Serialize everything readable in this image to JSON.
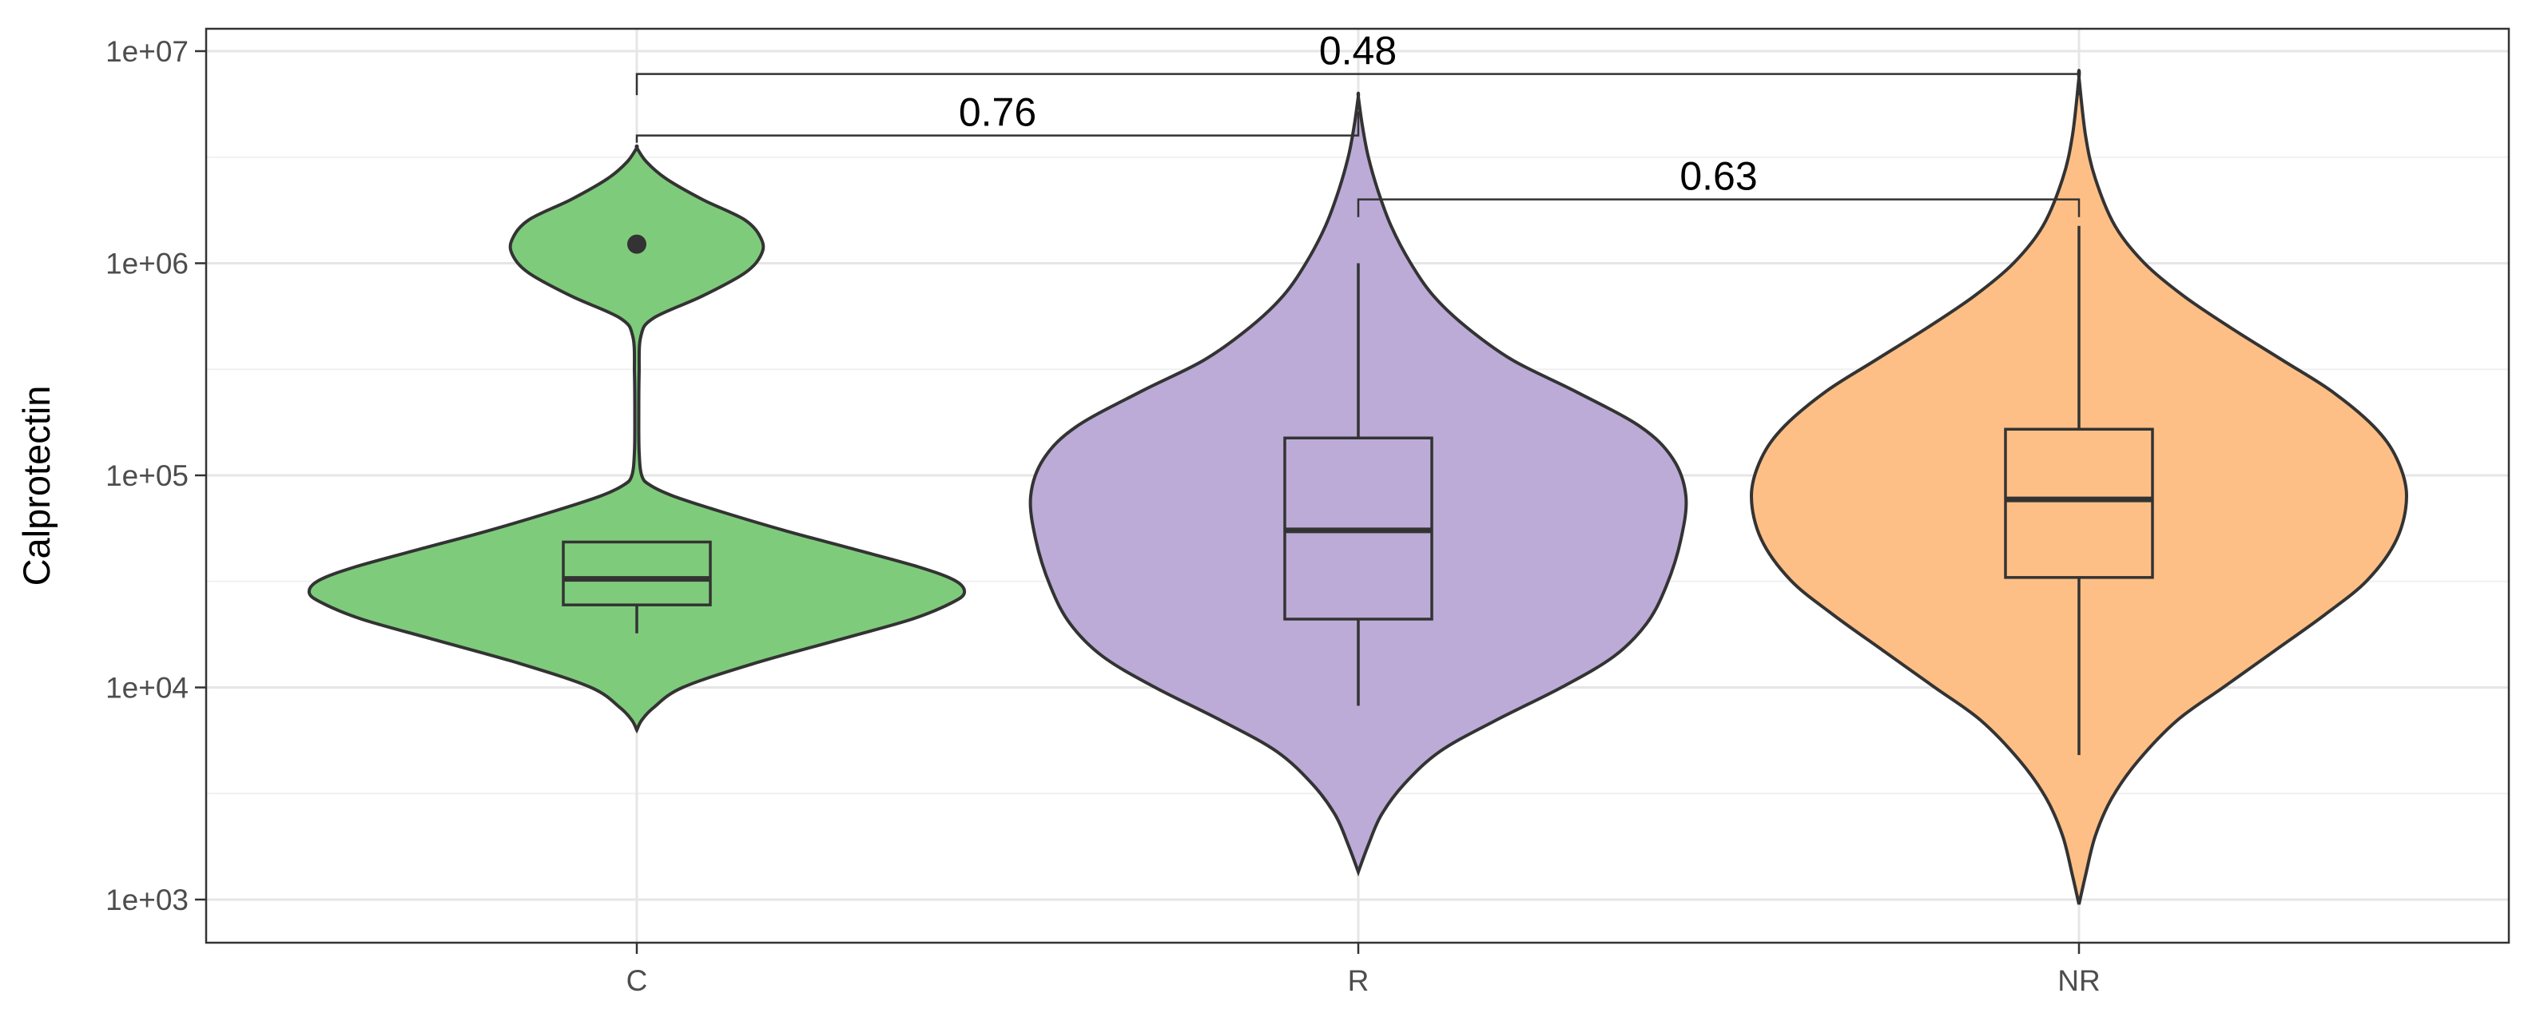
{
  "chart_data": {
    "type": "violin",
    "ylabel": "Calprotectin",
    "xlabel": "",
    "yscale": "log10",
    "ylim": [
      700,
      13000000
    ],
    "y_ticks": [
      1000,
      10000,
      100000,
      1000000,
      10000000
    ],
    "y_tick_labels": [
      "1e+03",
      "1e+04",
      "1e+05",
      "1e+06",
      "1e+07"
    ],
    "categories": [
      "C",
      "R",
      "NR"
    ],
    "grid": true,
    "legend": "none",
    "groups": [
      {
        "category": "C",
        "color": "#7fcb7c",
        "box": {
          "q1": 24500,
          "median": 32500,
          "q3": 48500,
          "whisker_low": 18000,
          "whisker_high": 48500
        },
        "outliers": [
          1230000
        ],
        "violin_range": [
          6300,
          3500000
        ],
        "density": [
          [
            6300,
            0.0
          ],
          [
            7000,
            0.015
          ],
          [
            8000,
            0.05
          ],
          [
            10000,
            0.14
          ],
          [
            13000,
            0.36
          ],
          [
            17000,
            0.63
          ],
          [
            21000,
            0.84
          ],
          [
            25000,
            0.96
          ],
          [
            28000,
            1.0
          ],
          [
            32000,
            0.97
          ],
          [
            37000,
            0.86
          ],
          [
            45000,
            0.66
          ],
          [
            55000,
            0.45
          ],
          [
            68000,
            0.25
          ],
          [
            80000,
            0.11
          ],
          [
            90000,
            0.04
          ],
          [
            100000,
            0.015
          ],
          [
            130000,
            0.007
          ],
          [
            200000,
            0.006
          ],
          [
            300000,
            0.007
          ],
          [
            450000,
            0.012
          ],
          [
            550000,
            0.05
          ],
          [
            700000,
            0.2
          ],
          [
            900000,
            0.33
          ],
          [
            1100000,
            0.38
          ],
          [
            1300000,
            0.38
          ],
          [
            1600000,
            0.33
          ],
          [
            2000000,
            0.2
          ],
          [
            2500000,
            0.09
          ],
          [
            3000000,
            0.03
          ],
          [
            3500000,
            0.0
          ]
        ]
      },
      {
        "category": "R",
        "color": "#bbabd6",
        "box": {
          "q1": 21000,
          "median": 55000,
          "q3": 150000,
          "whisker_low": 8200,
          "whisker_high": 1000000
        },
        "outliers": [],
        "violin_range": [
          1350,
          6100000
        ],
        "density": [
          [
            1350,
            0.0
          ],
          [
            1800,
            0.03
          ],
          [
            2500,
            0.07
          ],
          [
            3500,
            0.14
          ],
          [
            5000,
            0.25
          ],
          [
            7000,
            0.42
          ],
          [
            10000,
            0.62
          ],
          [
            14000,
            0.78
          ],
          [
            20000,
            0.88
          ],
          [
            30000,
            0.94
          ],
          [
            50000,
            0.985
          ],
          [
            80000,
            1.0
          ],
          [
            120000,
            0.96
          ],
          [
            170000,
            0.86
          ],
          [
            250000,
            0.66
          ],
          [
            350000,
            0.47
          ],
          [
            500000,
            0.33
          ],
          [
            700000,
            0.23
          ],
          [
            1000000,
            0.16
          ],
          [
            1500000,
            0.1
          ],
          [
            2200000,
            0.06
          ],
          [
            3200000,
            0.03
          ],
          [
            4500000,
            0.012
          ],
          [
            6100000,
            0.0
          ]
        ]
      },
      {
        "category": "NR",
        "color": "#fdbf86",
        "box": {
          "q1": 33000,
          "median": 77000,
          "q3": 165000,
          "whisker_low": 4800,
          "whisker_high": 1500000
        },
        "outliers": [],
        "violin_range": [
          950,
          7500000
        ],
        "density": [
          [
            950,
            0.0
          ],
          [
            1300,
            0.02
          ],
          [
            2000,
            0.05
          ],
          [
            3000,
            0.1
          ],
          [
            4500,
            0.18
          ],
          [
            7000,
            0.3
          ],
          [
            10000,
            0.44
          ],
          [
            15000,
            0.6
          ],
          [
            22000,
            0.75
          ],
          [
            32000,
            0.88
          ],
          [
            50000,
            0.97
          ],
          [
            80000,
            1.0
          ],
          [
            120000,
            0.97
          ],
          [
            170000,
            0.9
          ],
          [
            250000,
            0.77
          ],
          [
            350000,
            0.62
          ],
          [
            500000,
            0.46
          ],
          [
            700000,
            0.32
          ],
          [
            1000000,
            0.2
          ],
          [
            1500000,
            0.11
          ],
          [
            2500000,
            0.05
          ],
          [
            4000000,
            0.02
          ],
          [
            7500000,
            0.0
          ]
        ]
      }
    ],
    "comparisons": [
      {
        "from": "C",
        "to": "R",
        "label": "0.76",
        "y": 4000000,
        "left_tip": 3700000,
        "right_tip": 5200000
      },
      {
        "from": "R",
        "to": "NR",
        "label": "0.63",
        "y": 2000000,
        "left_tip": 1650000,
        "right_tip": 1650000
      },
      {
        "from": "C",
        "to": "NR",
        "label": "0.48",
        "y": 7800000,
        "left_tip": 6200000,
        "right_tip": 6200000
      }
    ]
  }
}
